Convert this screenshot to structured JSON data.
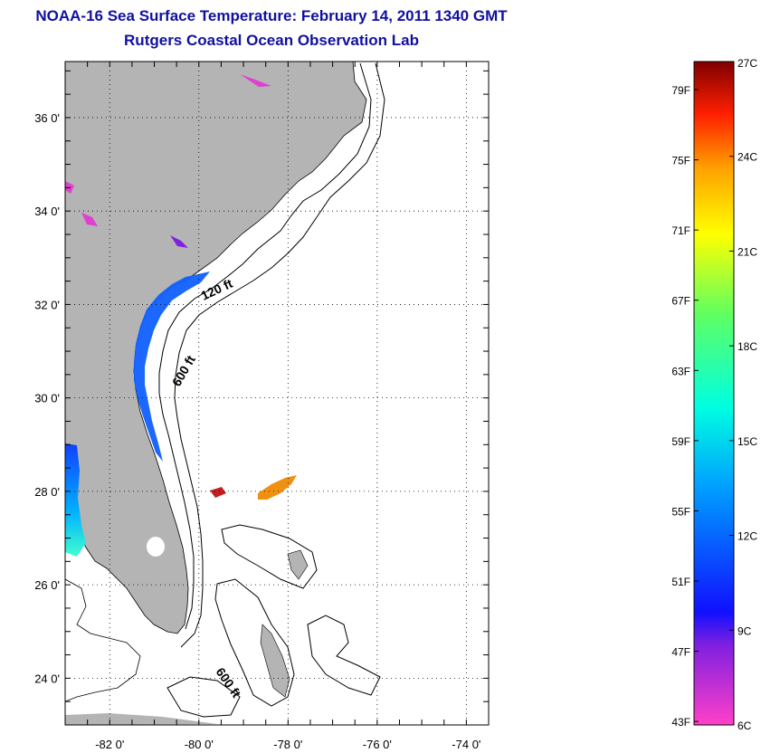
{
  "header": {
    "title": "NOAA-16 Sea Surface Temperature:  February 14, 2011 1340 GMT",
    "subtitle": "Rutgers Coastal Ocean Observation Lab"
  },
  "map": {
    "lat_labels": [
      "36 0'",
      "34 0'",
      "32 0'",
      "30 0'",
      "28 0'",
      "26 0'",
      "24 0'"
    ],
    "lat_values": [
      36,
      34,
      32,
      30,
      28,
      26,
      24
    ],
    "lon_labels": [
      "-82 0'",
      "-80 0'",
      "-78 0'",
      "-76 0'",
      "-74 0'"
    ],
    "lon_values": [
      -82,
      -80,
      -78,
      -76,
      -74
    ],
    "lat_range": [
      23,
      37.2
    ],
    "lon_range": [
      -83,
      -73.5
    ],
    "depth_labels": [
      "120 ft",
      "600 ft",
      "600 ft"
    ],
    "land_color": "#b4b4b4"
  },
  "colorbar": {
    "celsius_labels": [
      "27C",
      "24C",
      "21C",
      "18C",
      "15C",
      "12C",
      "9C",
      "6C"
    ],
    "fahrenheit_labels": [
      "79F",
      "75F",
      "71F",
      "67F",
      "63F",
      "59F",
      "55F",
      "51F",
      "47F",
      "43F"
    ],
    "range_c": [
      6,
      27
    ]
  }
}
